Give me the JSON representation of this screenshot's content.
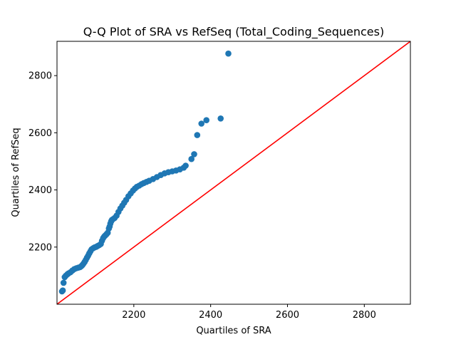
{
  "chart_data": {
    "type": "scatter",
    "title": "Q-Q Plot of SRA vs RefSeq (Total_Coding_Sequences)",
    "xlabel": "Quartiles of SRA",
    "ylabel": "Quartiles of RefSeq",
    "xlim": [
      2000,
      2920
    ],
    "ylim": [
      2000,
      2920
    ],
    "xticks": [
      2200,
      2400,
      2600,
      2800
    ],
    "yticks": [
      2200,
      2400,
      2600,
      2800
    ],
    "grid": false,
    "legend": "none",
    "marker_color": "#1f77b4",
    "reference_line": {
      "from": [
        2000,
        2000
      ],
      "to": [
        2920,
        2920
      ],
      "color": "#ff0000"
    },
    "x": [
      2013,
      2015,
      2017,
      2020,
      2023,
      2027,
      2030,
      2035,
      2040,
      2045,
      2050,
      2055,
      2060,
      2063,
      2066,
      2069,
      2072,
      2075,
      2078,
      2081,
      2084,
      2087,
      2090,
      2094,
      2098,
      2102,
      2106,
      2110,
      2114,
      2117,
      2120,
      2123,
      2126,
      2129,
      2132,
      2135,
      2137,
      2139,
      2141,
      2143,
      2146,
      2150,
      2155,
      2160,
      2165,
      2170,
      2175,
      2180,
      2186,
      2192,
      2198,
      2203,
      2208,
      2214,
      2220,
      2226,
      2233,
      2240,
      2250,
      2260,
      2270,
      2280,
      2290,
      2300,
      2310,
      2320,
      2330,
      2335,
      2350,
      2357,
      2365,
      2376,
      2389,
      2426,
      2446
    ],
    "y": [
      2045,
      2048,
      2075,
      2095,
      2100,
      2105,
      2108,
      2112,
      2118,
      2123,
      2126,
      2128,
      2130,
      2133,
      2137,
      2142,
      2148,
      2155,
      2163,
      2170,
      2178,
      2185,
      2192,
      2196,
      2199,
      2201,
      2204,
      2207,
      2211,
      2222,
      2231,
      2237,
      2241,
      2245,
      2250,
      2265,
      2272,
      2282,
      2290,
      2295,
      2298,
      2302,
      2310,
      2323,
      2335,
      2345,
      2355,
      2365,
      2378,
      2388,
      2398,
      2405,
      2411,
      2415,
      2420,
      2424,
      2428,
      2432,
      2438,
      2445,
      2452,
      2458,
      2462,
      2465,
      2468,
      2472,
      2478,
      2485,
      2508,
      2525,
      2592,
      2632,
      2644,
      2650,
      2877
    ]
  }
}
